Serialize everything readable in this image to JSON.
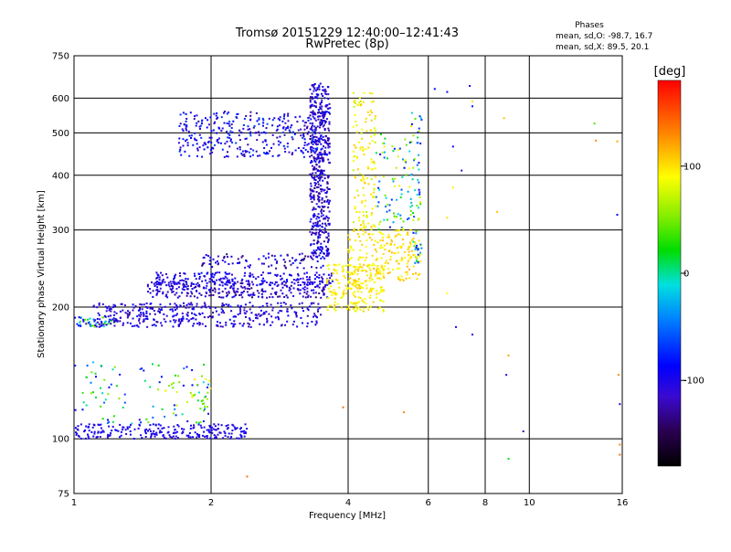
{
  "title": "Tromsø 20151229 12:40:00–12:41:43",
  "subtitle": "RwPretec (8p)",
  "stats": {
    "heading": "Phases",
    "line1": "mean, sd,O: -98.7, 16.7",
    "line2": "mean, sd,X:  89.5, 20.1"
  },
  "colorbar": {
    "label": "[deg]",
    "range": [
      -180,
      180
    ],
    "ticks": [
      {
        "value": 100,
        "label": "100"
      },
      {
        "value": 0,
        "label": "0"
      },
      {
        "value": -100,
        "label": "-100"
      }
    ]
  },
  "chart_data": {
    "type": "scatter",
    "title": "Tromsø 20151229 12:40:00–12:41:43",
    "subtitle": "RwPretec (8p)",
    "xlabel": "Frequency [MHz]",
    "ylabel": "Stationary phase Virtual Height [km]",
    "x_scale": "log",
    "y_scale": "log",
    "xlim": [
      1,
      16
    ],
    "ylim": [
      75,
      750
    ],
    "grid": true,
    "colorbar_label": "[deg]",
    "x_ticks": [
      {
        "value": 1,
        "label": "1"
      },
      {
        "value": 2,
        "label": "2"
      },
      {
        "value": 4,
        "label": "4"
      },
      {
        "value": 6,
        "label": "6"
      },
      {
        "value": 8,
        "label": "8"
      },
      {
        "value": 10,
        "label": "10"
      },
      {
        "value": 16,
        "label": "16"
      }
    ],
    "x_grid": [
      1,
      2,
      4,
      6,
      8,
      10,
      16
    ],
    "y_ticks": [
      {
        "value": 75,
        "label": "75"
      },
      {
        "value": 100,
        "label": "100"
      },
      {
        "value": 200,
        "label": "200"
      },
      {
        "value": 300,
        "label": "300"
      },
      {
        "value": 400,
        "label": "400"
      },
      {
        "value": 500,
        "label": "500"
      },
      {
        "value": 600,
        "label": "600"
      },
      {
        "value": 750,
        "label": "750"
      }
    ],
    "y_grid": [
      100,
      200,
      300,
      400,
      500,
      600
    ],
    "point_groups": [
      {
        "x": [
          1.0,
          2.4
        ],
        "y": [
          100,
          108
        ],
        "phase": [
          -110,
          -85
        ],
        "n": 230
      },
      {
        "x": [
          1.0,
          2.0
        ],
        "y": [
          108,
          150
        ],
        "phase": [
          -105,
          60
        ],
        "n": 90
      },
      {
        "x": [
          1.5,
          2.0
        ],
        "y": [
          118,
          140
        ],
        "phase": [
          40,
          100
        ],
        "n": 30
      },
      {
        "x": [
          1.0,
          1.25
        ],
        "y": [
          180,
          190
        ],
        "phase": [
          -110,
          60
        ],
        "n": 50
      },
      {
        "x": [
          1.1,
          3.5
        ],
        "y": [
          180,
          205
        ],
        "phase": [
          -130,
          -80
        ],
        "n": 380
      },
      {
        "x": [
          1.45,
          3.6
        ],
        "y": [
          210,
          228
        ],
        "phase": [
          -140,
          -85
        ],
        "n": 280
      },
      {
        "x": [
          1.5,
          3.7
        ],
        "y": [
          225,
          240
        ],
        "phase": [
          -120,
          -80
        ],
        "n": 200
      },
      {
        "x": [
          1.9,
          3.6
        ],
        "y": [
          245,
          265
        ],
        "phase": [
          -140,
          -80
        ],
        "n": 90
      },
      {
        "x": [
          3.3,
          3.65
        ],
        "y": [
          260,
          650
        ],
        "phase": [
          -140,
          -80
        ],
        "n": 500
      },
      {
        "x": [
          1.7,
          3.6
        ],
        "y": [
          440,
          560
        ],
        "phase": [
          -130,
          -60
        ],
        "n": 350
      },
      {
        "x": [
          3.6,
          4.8
        ],
        "y": [
          195,
          250
        ],
        "phase": [
          80,
          110
        ],
        "n": 220
      },
      {
        "x": [
          4.0,
          5.8
        ],
        "y": [
          230,
          300
        ],
        "phase": [
          85,
          115
        ],
        "n": 200
      },
      {
        "x": [
          4.1,
          4.6
        ],
        "y": [
          300,
          620
        ],
        "phase": [
          70,
          110
        ],
        "n": 140
      },
      {
        "x": [
          4.6,
          5.5
        ],
        "y": [
          300,
          500
        ],
        "phase": [
          -100,
          100
        ],
        "n": 80
      },
      {
        "x": [
          5.5,
          5.8
        ],
        "y": [
          250,
          560
        ],
        "phase": [
          -100,
          100
        ],
        "n": 70
      }
    ],
    "points": [
      {
        "x": 6.2,
        "y": 630,
        "phase": -90
      },
      {
        "x": 6.6,
        "y": 620,
        "phase": -95
      },
      {
        "x": 7.4,
        "y": 640,
        "phase": -100
      },
      {
        "x": 7.5,
        "y": 590,
        "phase": 100
      },
      {
        "x": 7.5,
        "y": 575,
        "phase": -80
      },
      {
        "x": 8.8,
        "y": 540,
        "phase": 110
      },
      {
        "x": 6.8,
        "y": 465,
        "phase": -85
      },
      {
        "x": 7.1,
        "y": 410,
        "phase": -110
      },
      {
        "x": 6.8,
        "y": 375,
        "phase": 95
      },
      {
        "x": 6.6,
        "y": 320,
        "phase": 100
      },
      {
        "x": 8.5,
        "y": 330,
        "phase": 110
      },
      {
        "x": 6.6,
        "y": 215,
        "phase": 90
      },
      {
        "x": 6.9,
        "y": 180,
        "phase": -100
      },
      {
        "x": 7.5,
        "y": 173,
        "phase": -110
      },
      {
        "x": 9.0,
        "y": 155,
        "phase": 120
      },
      {
        "x": 8.9,
        "y": 140,
        "phase": -100
      },
      {
        "x": 3.9,
        "y": 118,
        "phase": 140
      },
      {
        "x": 5.3,
        "y": 115,
        "phase": 130
      },
      {
        "x": 9.7,
        "y": 104,
        "phase": -120
      },
      {
        "x": 9.0,
        "y": 90,
        "phase": 20
      },
      {
        "x": 2.4,
        "y": 82,
        "phase": 140
      },
      {
        "x": 13.9,
        "y": 525,
        "phase": 40
      },
      {
        "x": 14.0,
        "y": 480,
        "phase": 130
      },
      {
        "x": 15.6,
        "y": 478,
        "phase": 120
      },
      {
        "x": 15.6,
        "y": 325,
        "phase": -90
      },
      {
        "x": 15.7,
        "y": 140,
        "phase": 130
      },
      {
        "x": 15.8,
        "y": 120,
        "phase": -100
      },
      {
        "x": 15.8,
        "y": 97,
        "phase": 130
      },
      {
        "x": 15.8,
        "y": 92,
        "phase": 140
      }
    ]
  }
}
